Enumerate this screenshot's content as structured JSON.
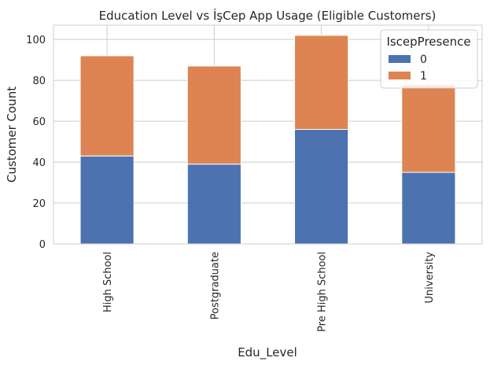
{
  "chart_data": {
    "type": "bar",
    "stacked": true,
    "title": "Education Level vs İşCep App Usage (Eligible Customers)",
    "xlabel": "Edu_Level",
    "ylabel": "Customer Count",
    "categories": [
      "High School",
      "Postgraduate",
      "Pre High School",
      "University"
    ],
    "series": [
      {
        "name": "0",
        "values": [
          43,
          39,
          56,
          35
        ],
        "color": "#4c72b0"
      },
      {
        "name": "1",
        "values": [
          49,
          48,
          46,
          43
        ],
        "color": "#dd8452"
      }
    ],
    "ylim": [
      0,
      107
    ],
    "yticks": [
      0,
      20,
      40,
      60,
      80,
      100
    ],
    "grid": true,
    "legend": {
      "title": "IscepPresence",
      "placement": "top-right"
    }
  }
}
